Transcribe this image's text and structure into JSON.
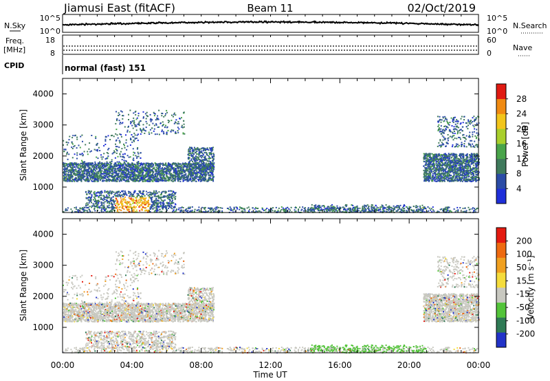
{
  "header": {
    "station": "Jiamusi East (fitACF)",
    "beam": "Beam 11",
    "date": "02/Oct/2019"
  },
  "top_panels": {
    "nsky_label": "N.Sky",
    "nsky_ticks": [
      "10^5",
      "10^0"
    ],
    "nsearch_label": "N.Search",
    "nsearch_ticks": [
      "10^5",
      "10^0"
    ],
    "freq_label": "Freq.",
    "freq_unit": "[MHz]",
    "freq_ticks": [
      "18",
      "8"
    ],
    "nave_label": "Nave",
    "nave_ticks": [
      "60",
      "0"
    ],
    "cpid_label": "CPID",
    "cpid_value": "normal (fast) 151"
  },
  "chart_data": [
    {
      "type": "heatmap",
      "name": "power",
      "ylabel": "Slant Range [km]",
      "yticks": [
        "4000",
        "3000",
        "2000",
        "1000"
      ],
      "ylim": [
        180,
        4500
      ],
      "colorbar_label": "Power [dB]",
      "colorbar_ticks": [
        "28",
        "24",
        "20",
        "16",
        "12",
        "8",
        "4"
      ],
      "colors": [
        "#1f2fd9",
        "#2b4ca6",
        "#3f7a5c",
        "#49a44a",
        "#a9cf2c",
        "#f2c51b",
        "#f08a12",
        "#e01a12"
      ]
    },
    {
      "type": "heatmap",
      "name": "velocity",
      "ylabel": "Slant Range [km]",
      "yticks": [
        "4000",
        "3000",
        "2000",
        "1000"
      ],
      "ylim": [
        180,
        4500
      ],
      "colorbar_label": "Velocity [m s⁻¹]",
      "colorbar_ticks": [
        "200",
        "100",
        "50",
        "15",
        "-15",
        "-50",
        "-100",
        "-200"
      ],
      "colors": [
        "#2233c8",
        "#2f7a55",
        "#53c43a",
        "#c8c8c0",
        "#f5dc3c",
        "#f0a020",
        "#ee6a10",
        "#e41a10"
      ]
    }
  ],
  "xaxis": {
    "ticks": [
      "00:00",
      "04:00",
      "08:00",
      "12:00",
      "16:00",
      "20:00",
      "00:00"
    ],
    "label": "Time UT",
    "xlim_hours": [
      0,
      24
    ]
  }
}
